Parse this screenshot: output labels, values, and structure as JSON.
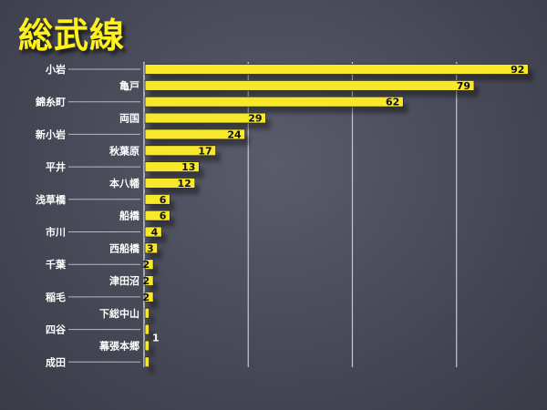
{
  "chart_data": {
    "type": "bar",
    "orientation": "horizontal",
    "title": "総武線",
    "categories": [
      "小岩",
      "亀戸",
      "錦糸町",
      "両国",
      "新小岩",
      "秋葉原",
      "平井",
      "本八幡",
      "浅草橋",
      "船橋",
      "市川",
      "西船橋",
      "千葉",
      "津田沼",
      "稲毛",
      "下総中山",
      "四谷",
      "幕張本郷",
      "成田"
    ],
    "values": [
      92,
      79,
      62,
      29,
      24,
      17,
      13,
      12,
      6,
      6,
      4,
      3,
      2,
      2,
      2,
      1,
      1,
      1,
      1
    ],
    "data_labels": [
      "92",
      "79",
      "62",
      "29",
      "24",
      "17",
      "13",
      "12",
      "6",
      "6",
      "4",
      "3",
      "2",
      "2",
      "2",
      "",
      "",
      "",
      ""
    ],
    "group_label": "1",
    "xlim": [
      0,
      100
    ],
    "grid": true,
    "grid_step": 25,
    "bar_color": "#f7e92a",
    "label_color": "#ffffff"
  }
}
